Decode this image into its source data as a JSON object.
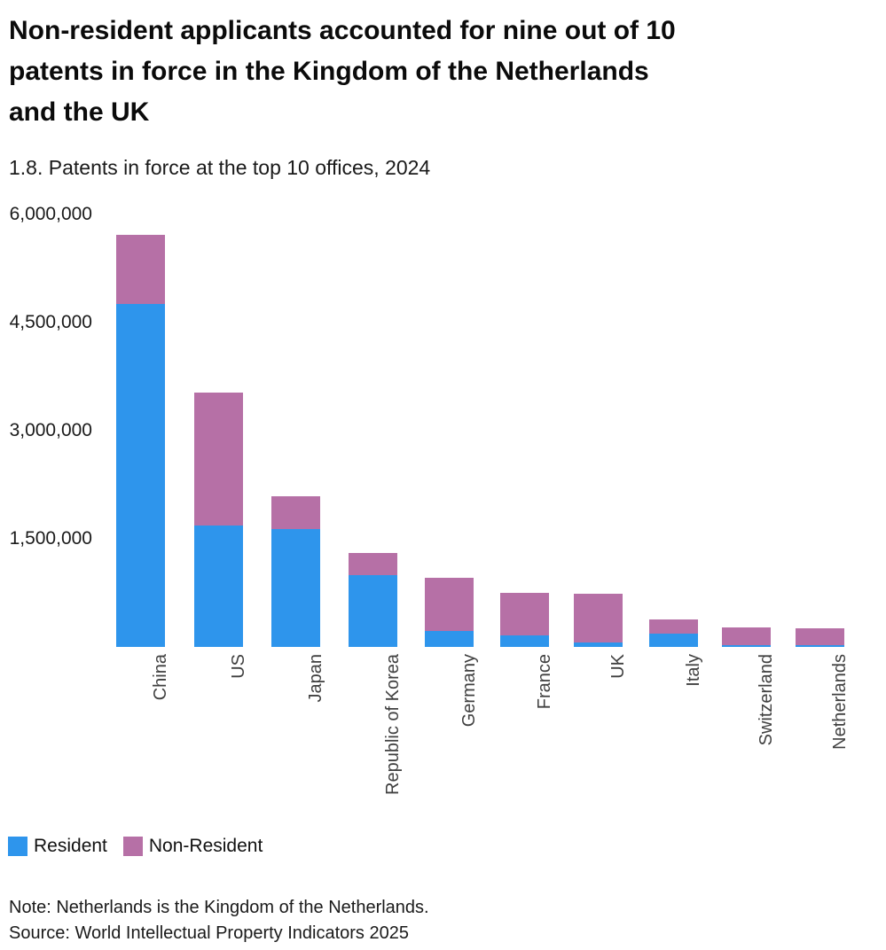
{
  "header": {
    "title": "Non-resident applicants accounted for nine out of 10 patents in force in the Kingdom of the Netherlands and the UK",
    "title_lines": [
      "Non-resident applicants accounted for nine out of 10",
      "patents in force in the Kingdom of the Netherlands",
      "and the UK"
    ],
    "subtitle": "1.8. Patents in force at the top 10 offices, 2024"
  },
  "chart_data": {
    "type": "bar",
    "stacked": true,
    "title": "1.8. Patents in force at the top 10 offices, 2024",
    "categories": [
      "China",
      "US",
      "Japan",
      "Republic of Korea",
      "Germany",
      "France",
      "UK",
      "Italy",
      "Switzerland",
      "Netherlands"
    ],
    "series": [
      {
        "name": "Resident",
        "color": "#2E95EC",
        "values": [
          4760000,
          1680000,
          1630000,
          1000000,
          225000,
          165000,
          65000,
          185000,
          30000,
          25000
        ]
      },
      {
        "name": "Non-Resident",
        "color": "#B670A6",
        "values": [
          960000,
          1850000,
          460000,
          300000,
          730000,
          590000,
          670000,
          195000,
          240000,
          230000
        ]
      }
    ],
    "totals": [
      5720000,
      3530000,
      2090000,
      1300000,
      955000,
      755000,
      735000,
      380000,
      270000,
      255000
    ],
    "xlabel": "",
    "ylabel": "",
    "ylim": [
      0,
      6000000
    ],
    "y_ticks": [
      "6,000,000",
      "4,500,000",
      "3,000,000",
      "1,500,000"
    ],
    "y_tick_values": [
      6000000,
      4500000,
      3000000,
      1500000
    ],
    "grid": false,
    "legend_position": "bottom-left",
    "bar_orientation": "vertical",
    "x_label_rotation": -90
  },
  "legend": {
    "items": [
      {
        "label": "Resident",
        "color": "#2E95EC"
      },
      {
        "label": "Non-Resident",
        "color": "#B670A6"
      }
    ]
  },
  "footer": {
    "note": "Note: Netherlands is the Kingdom of the Netherlands.",
    "source": "Source: World Intellectual Property Indicators 2025"
  }
}
